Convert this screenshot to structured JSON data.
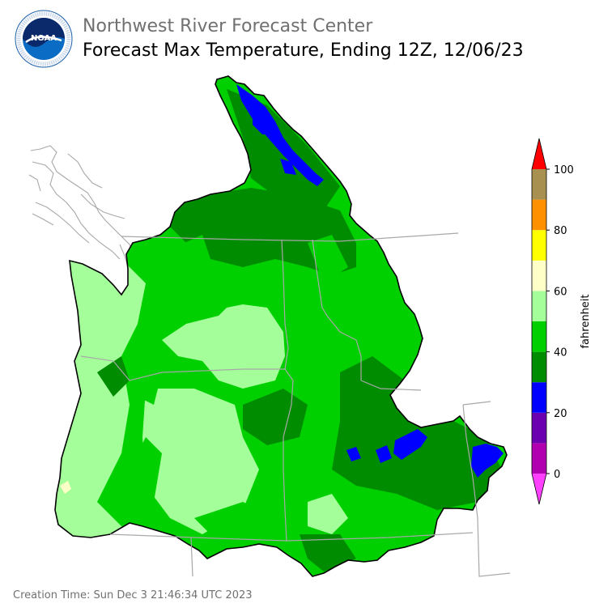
{
  "header": {
    "org": "Northwest River Forecast Center",
    "title": "Forecast Max Temperature, Ending 12Z, 12/06/23"
  },
  "logo": {
    "text": "NOAA",
    "ring_text": "NATIONAL OCEANIC AND ATMOSPHERIC ADMINISTRATION · U.S. DEPARTMENT OF COMMERCE"
  },
  "colorbar": {
    "label": "fahrenheit",
    "ticks": [
      "0",
      "20",
      "40",
      "60",
      "80",
      "100"
    ],
    "bins": [
      {
        "from": 0,
        "to": 10,
        "color": "#b000b0"
      },
      {
        "from": 10,
        "to": 20,
        "color": "#6a00b0"
      },
      {
        "from": 20,
        "to": 30,
        "color": "#0000ff"
      },
      {
        "from": 30,
        "to": 40,
        "color": "#008c00"
      },
      {
        "from": 40,
        "to": 50,
        "color": "#00d000"
      },
      {
        "from": 50,
        "to": 60,
        "color": "#a4ff9a"
      },
      {
        "from": 60,
        "to": 70,
        "color": "#ffffc8"
      },
      {
        "from": 70,
        "to": 80,
        "color": "#ffff00"
      },
      {
        "from": 80,
        "to": 90,
        "color": "#ff9000"
      },
      {
        "from": 90,
        "to": 100,
        "color": "#a89050"
      }
    ],
    "under_color": "#ff40ff",
    "over_color": "#ff0000"
  },
  "footer": {
    "creation_time": "Creation Time: Sun Dec 3 21:46:34 UTC 2023"
  }
}
